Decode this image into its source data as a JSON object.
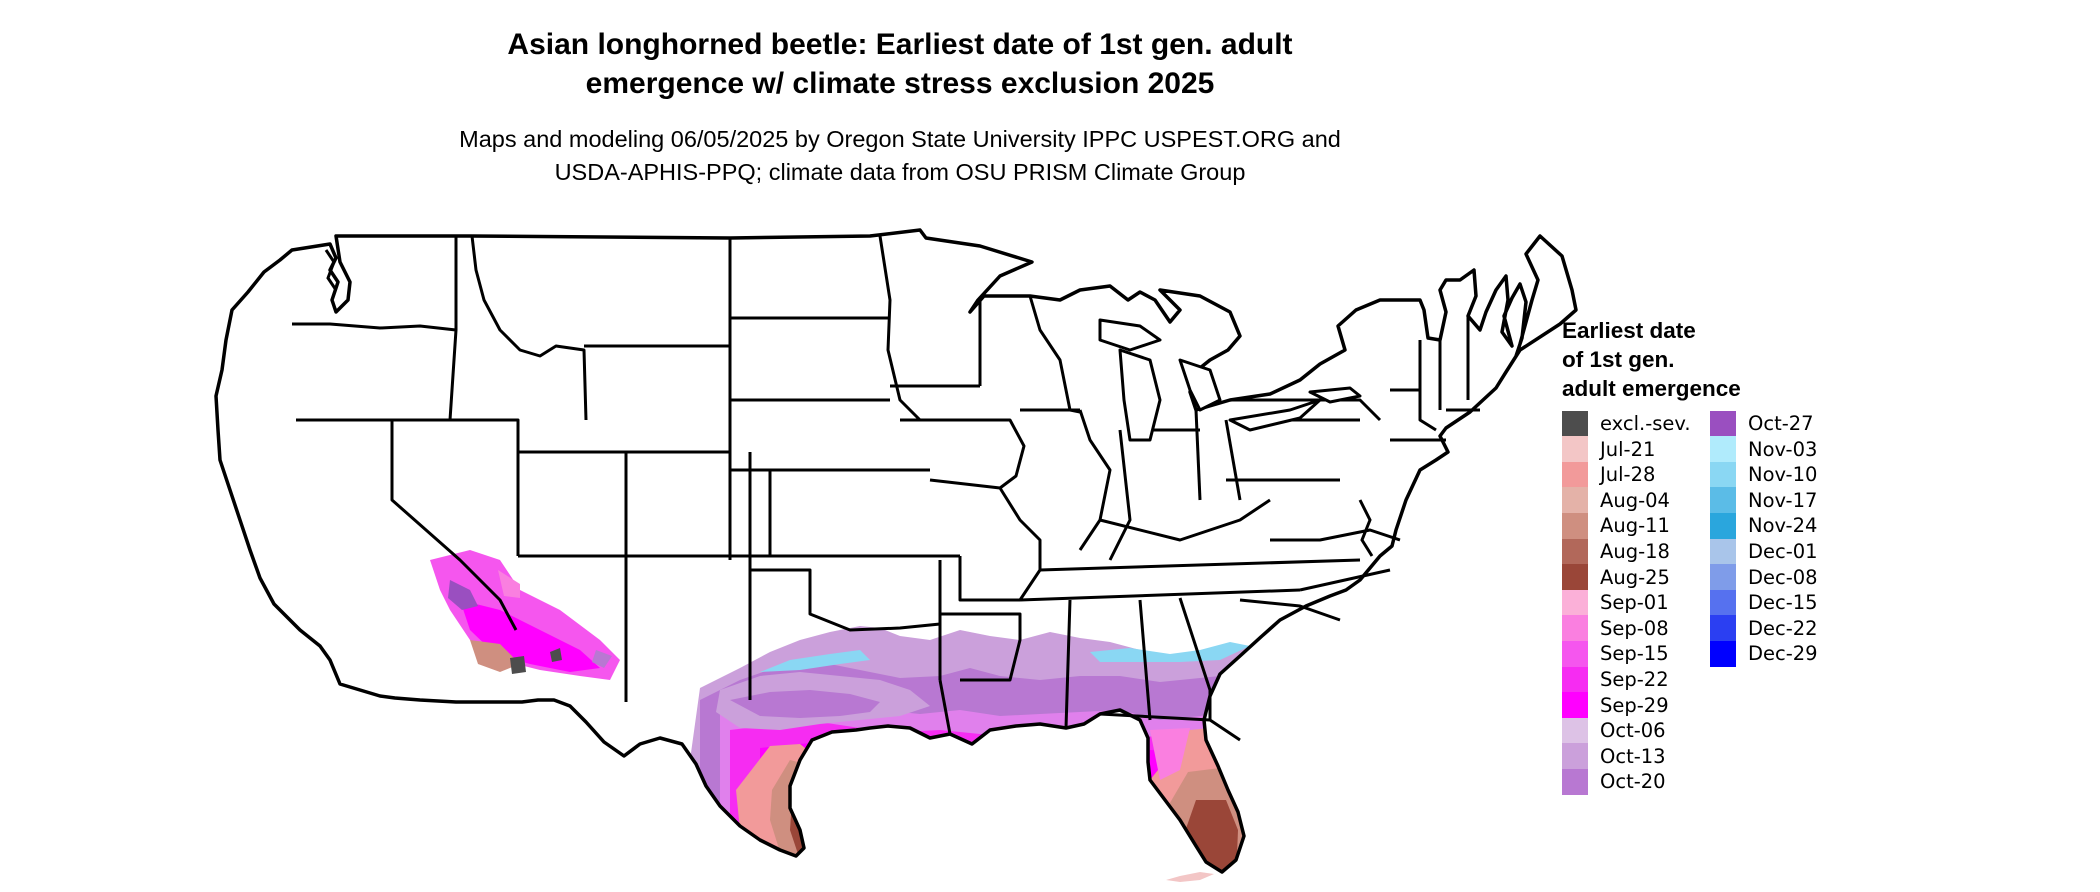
{
  "title": {
    "line1": "Asian longhorned beetle: Earliest date of 1st gen. adult",
    "line2": "emergence w/ climate stress exclusion 2025"
  },
  "subtitle": {
    "line1": "Maps and modeling 06/05/2025 by Oregon State University IPPC USPEST.ORG and",
    "line2": "USDA-APHIS-PPQ; climate data from OSU PRISM Climate Group"
  },
  "legend": {
    "title_lines": [
      "Earliest date",
      "of 1st gen.",
      "adult emergence"
    ],
    "items": [
      {
        "label": "excl.-sev.",
        "color": "#4d4d4d"
      },
      {
        "label": "Jul-21",
        "color": "#f3c6c6"
      },
      {
        "label": "Jul-28",
        "color": "#f29a9a"
      },
      {
        "label": "Aug-04",
        "color": "#e4b2a8"
      },
      {
        "label": "Aug-11",
        "color": "#cf8f80"
      },
      {
        "label": "Aug-18",
        "color": "#b2685a"
      },
      {
        "label": "Aug-25",
        "color": "#9a4638"
      },
      {
        "label": "Sep-01",
        "color": "#fbb0d8"
      },
      {
        "label": "Sep-08",
        "color": "#fa7fe0"
      },
      {
        "label": "Sep-15",
        "color": "#f556ee"
      },
      {
        "label": "Sep-22",
        "color": "#f62cf2"
      },
      {
        "label": "Sep-29",
        "color": "#ff00ff"
      },
      {
        "label": "Oct-06",
        "color": "#ddc2e6"
      },
      {
        "label": "Oct-13",
        "color": "#cba0db"
      },
      {
        "label": "Oct-20",
        "color": "#b878d2"
      },
      {
        "label": "Oct-27",
        "color": "#9a4fc0"
      },
      {
        "label": "Nov-03",
        "color": "#b0ebfc"
      },
      {
        "label": "Nov-10",
        "color": "#8ad7f3"
      },
      {
        "label": "Nov-17",
        "color": "#5bbce7"
      },
      {
        "label": "Nov-24",
        "color": "#2aa6dd"
      },
      {
        "label": "Dec-01",
        "color": "#a9c5ea"
      },
      {
        "label": "Dec-08",
        "color": "#7f9ce9"
      },
      {
        "label": "Dec-15",
        "color": "#5671ef"
      },
      {
        "label": "Dec-22",
        "color": "#2b3ff2"
      },
      {
        "label": "Dec-29",
        "color": "#0000ff"
      }
    ]
  }
}
